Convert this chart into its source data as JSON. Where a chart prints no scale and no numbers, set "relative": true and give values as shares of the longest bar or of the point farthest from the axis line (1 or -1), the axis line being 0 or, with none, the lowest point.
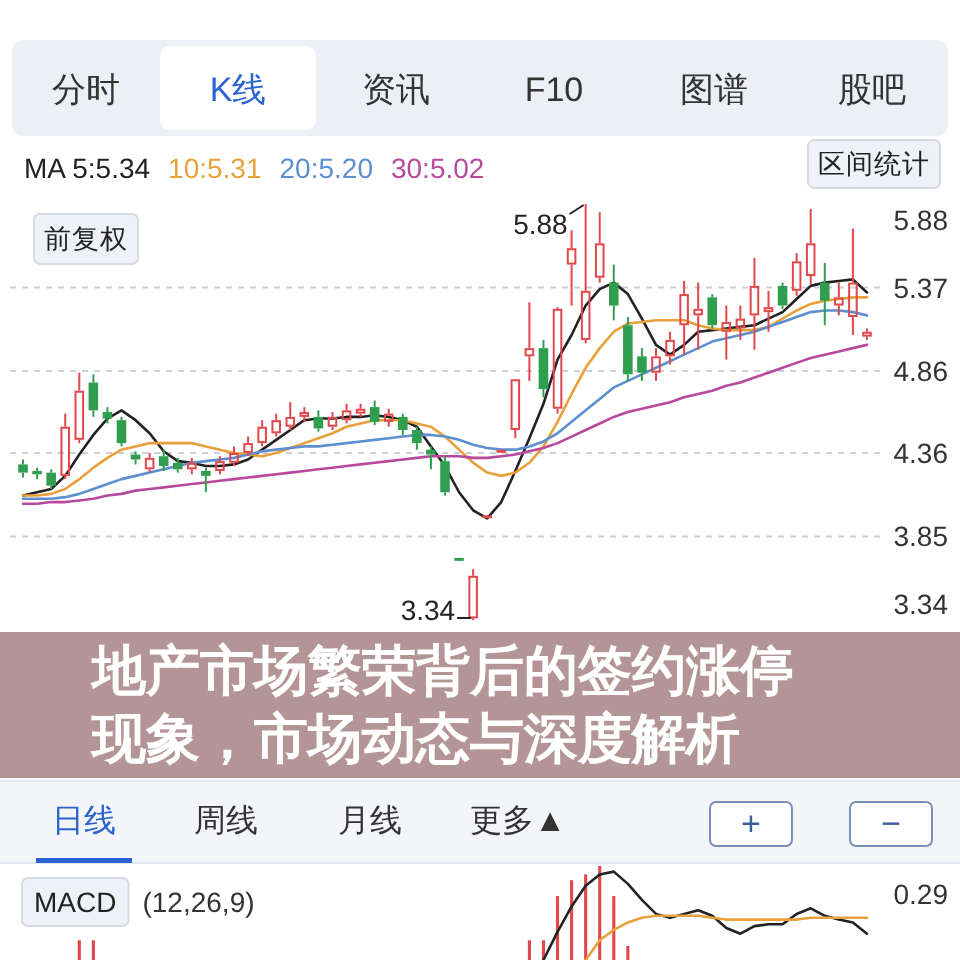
{
  "chart_data": [
    {
      "type": "candlestick",
      "title": "地产市场繁荣背后的签约涨停现象，市场动态与深度解析",
      "categories": [
        null,
        null,
        null,
        null,
        null,
        null,
        null,
        null,
        null,
        null,
        null,
        null,
        null,
        null,
        null,
        null,
        null,
        null,
        null,
        null,
        null,
        null,
        null,
        null,
        null,
        null,
        null,
        null,
        null,
        null,
        null,
        null,
        null,
        null,
        null,
        null,
        null,
        null,
        null,
        null,
        null,
        null,
        null,
        null,
        null,
        null,
        null,
        null,
        null,
        null,
        null,
        null,
        null,
        null,
        null,
        null,
        null,
        null,
        null,
        null,
        null
      ],
      "ohlc": [
        [
          4.29,
          4.32,
          4.21,
          4.24
        ],
        [
          4.25,
          4.27,
          4.2,
          4.23
        ],
        [
          4.24,
          4.26,
          4.14,
          4.16
        ],
        [
          4.22,
          4.6,
          4.2,
          4.52
        ],
        [
          4.44,
          4.85,
          4.42,
          4.74
        ],
        [
          4.79,
          4.84,
          4.58,
          4.62
        ],
        [
          4.61,
          4.64,
          4.54,
          4.57
        ],
        [
          4.56,
          4.58,
          4.4,
          4.42
        ],
        [
          4.35,
          4.37,
          4.29,
          4.32
        ],
        [
          4.26,
          4.36,
          4.24,
          4.33
        ],
        [
          4.34,
          4.38,
          4.25,
          4.28
        ],
        [
          4.3,
          4.33,
          4.24,
          4.26
        ],
        [
          4.26,
          4.33,
          4.23,
          4.3
        ],
        [
          4.25,
          4.27,
          4.12,
          4.22
        ],
        [
          4.25,
          4.34,
          4.23,
          4.31
        ],
        [
          4.3,
          4.4,
          4.28,
          4.36
        ],
        [
          4.36,
          4.46,
          4.34,
          4.42
        ],
        [
          4.42,
          4.56,
          4.4,
          4.52
        ],
        [
          4.48,
          4.6,
          4.46,
          4.56
        ],
        [
          4.52,
          4.67,
          4.5,
          4.58
        ],
        [
          4.58,
          4.64,
          4.55,
          4.61
        ],
        [
          4.58,
          4.62,
          4.49,
          4.51
        ],
        [
          4.52,
          4.61,
          4.5,
          4.58
        ],
        [
          4.56,
          4.66,
          4.54,
          4.62
        ],
        [
          4.6,
          4.66,
          4.58,
          4.63
        ],
        [
          4.64,
          4.68,
          4.53,
          4.55
        ],
        [
          4.55,
          4.63,
          4.52,
          4.6
        ],
        [
          4.58,
          4.6,
          4.47,
          4.5
        ],
        [
          4.5,
          4.52,
          4.38,
          4.42
        ],
        [
          4.38,
          4.4,
          4.26,
          4.35
        ],
        [
          4.31,
          4.34,
          4.1,
          4.12
        ],
        [
          3.71,
          3.71,
          3.71,
          3.71
        ],
        [
          3.35,
          3.65,
          3.34,
          3.61
        ],
        [
          3.97,
          3.97,
          3.97,
          3.97
        ],
        [
          4.37,
          4.37,
          4.37,
          4.37
        ],
        [
          4.5,
          4.81,
          4.45,
          4.81
        ],
        [
          4.95,
          5.28,
          4.8,
          5.0
        ],
        [
          5.0,
          5.05,
          4.7,
          4.75
        ],
        [
          4.63,
          5.25,
          4.6,
          5.24
        ],
        [
          5.51,
          5.72,
          5.26,
          5.61
        ],
        [
          5.05,
          5.88,
          5.03,
          5.35
        ],
        [
          5.43,
          5.83,
          5.4,
          5.64
        ],
        [
          5.4,
          5.51,
          5.17,
          5.26
        ],
        [
          5.14,
          5.19,
          4.8,
          4.84
        ],
        [
          4.95,
          5.0,
          4.8,
          4.85
        ],
        [
          4.85,
          5.0,
          4.8,
          4.95
        ],
        [
          4.95,
          5.1,
          4.9,
          5.05
        ],
        [
          5.14,
          5.41,
          4.96,
          5.33
        ],
        [
          5.2,
          5.4,
          4.99,
          5.24
        ],
        [
          5.31,
          5.33,
          5.12,
          5.14
        ],
        [
          5.1,
          5.26,
          4.93,
          5.16
        ],
        [
          5.12,
          5.26,
          5.05,
          5.18
        ],
        [
          5.2,
          5.55,
          4.99,
          5.38
        ],
        [
          5.22,
          5.35,
          5.1,
          5.25
        ],
        [
          5.38,
          5.4,
          5.24,
          5.26
        ],
        [
          5.35,
          5.58,
          5.32,
          5.53
        ],
        [
          5.44,
          5.85,
          5.39,
          5.64
        ],
        [
          5.4,
          5.52,
          5.14,
          5.29
        ],
        [
          5.26,
          5.4,
          5.2,
          5.31
        ],
        [
          5.19,
          5.73,
          5.08,
          5.4
        ],
        [
          5.07,
          5.12,
          5.05,
          5.1
        ]
      ],
      "colors": [
        "#2f9e4f",
        "#2f9e4f",
        "#2f9e4f",
        "#e2474b",
        "#e2474b",
        "#2f9e4f",
        "#2f9e4f",
        "#2f9e4f",
        "#2f9e4f",
        "#e2474b",
        "#2f9e4f",
        "#2f9e4f",
        "#e2474b",
        "#2f9e4f",
        "#e2474b",
        "#e2474b",
        "#e2474b",
        "#e2474b",
        "#e2474b",
        "#e2474b",
        "#e2474b",
        "#2f9e4f",
        "#e2474b",
        "#e2474b",
        "#e2474b",
        "#2f9e4f",
        "#e2474b",
        "#2f9e4f",
        "#2f9e4f",
        "#2f9e4f",
        "#2f9e4f",
        "#2f9e4f",
        "#e2474b",
        "#e2474b",
        "#e2474b",
        "#e2474b",
        "#e2474b",
        "#2f9e4f",
        "#e2474b",
        "#e2474b",
        "#e2474b",
        "#e2474b",
        "#2f9e4f",
        "#2f9e4f",
        "#2f9e4f",
        "#e2474b",
        "#e2474b",
        "#e2474b",
        "#e2474b",
        "#2f9e4f",
        "#e2474b",
        "#e2474b",
        "#e2474b",
        "#e2474b",
        "#2f9e4f",
        "#e2474b",
        "#e2474b",
        "#2f9e4f",
        "#e2474b",
        "#e2474b",
        "#e2474b"
      ],
      "series": [
        {
          "name": "MA 5:5.34",
          "type": "line",
          "color": "#222222",
          "values": [
            4.1,
            4.12,
            4.14,
            4.22,
            4.35,
            4.47,
            4.57,
            4.62,
            4.56,
            4.48,
            4.37,
            4.31,
            4.3,
            4.28,
            4.28,
            4.29,
            4.32,
            4.38,
            4.44,
            4.5,
            4.56,
            4.57,
            4.57,
            4.58,
            4.58,
            4.59,
            4.58,
            4.56,
            4.52,
            4.4,
            4.28,
            4.12,
            4.01,
            3.96,
            4.06,
            4.25,
            4.45,
            4.66,
            4.93,
            5.08,
            5.26,
            5.36,
            5.4,
            5.33,
            5.18,
            5.02,
            4.96,
            5.02,
            5.1,
            5.11,
            5.12,
            5.13,
            5.14,
            5.18,
            5.22,
            5.3,
            5.38,
            5.4,
            5.41,
            5.42,
            5.34
          ]
        },
        {
          "name": "10:5.31",
          "type": "line",
          "color": "#e8a13a",
          "values": [
            4.1,
            4.1,
            4.11,
            4.14,
            4.2,
            4.27,
            4.33,
            4.38,
            4.4,
            4.42,
            4.42,
            4.42,
            4.42,
            4.4,
            4.38,
            4.36,
            4.35,
            4.34,
            4.36,
            4.39,
            4.42,
            4.45,
            4.48,
            4.52,
            4.54,
            4.56,
            4.56,
            4.56,
            4.54,
            4.52,
            4.46,
            4.38,
            4.3,
            4.24,
            4.22,
            4.24,
            4.3,
            4.4,
            4.55,
            4.72,
            4.88,
            5.0,
            5.1,
            5.15,
            5.16,
            5.17,
            5.17,
            5.17,
            5.14,
            5.12,
            5.11,
            5.11,
            5.11,
            5.13,
            5.18,
            5.23,
            5.27,
            5.29,
            5.3,
            5.31,
            5.31
          ]
        },
        {
          "name": "20:5.20",
          "type": "line",
          "color": "#5b8fd0",
          "values": [
            4.08,
            4.08,
            4.08,
            4.09,
            4.11,
            4.14,
            4.17,
            4.2,
            4.22,
            4.24,
            4.26,
            4.28,
            4.3,
            4.31,
            4.32,
            4.33,
            4.35,
            4.37,
            4.38,
            4.39,
            4.4,
            4.4,
            4.41,
            4.42,
            4.43,
            4.44,
            4.45,
            4.46,
            4.47,
            4.47,
            4.46,
            4.44,
            4.41,
            4.39,
            4.38,
            4.38,
            4.4,
            4.43,
            4.48,
            4.55,
            4.62,
            4.69,
            4.76,
            4.8,
            4.84,
            4.88,
            4.92,
            4.96,
            5.0,
            5.04,
            5.06,
            5.08,
            5.1,
            5.13,
            5.16,
            5.19,
            5.22,
            5.23,
            5.23,
            5.22,
            5.2
          ]
        },
        {
          "name": "30:5.02",
          "type": "line",
          "color": "#b8489c",
          "values": [
            4.05,
            4.05,
            4.06,
            4.06,
            4.07,
            4.08,
            4.1,
            4.11,
            4.13,
            4.14,
            4.15,
            4.16,
            4.17,
            4.18,
            4.19,
            4.2,
            4.21,
            4.22,
            4.23,
            4.24,
            4.25,
            4.26,
            4.27,
            4.28,
            4.29,
            4.3,
            4.31,
            4.32,
            4.33,
            4.34,
            4.34,
            4.34,
            4.33,
            4.33,
            4.34,
            4.35,
            4.37,
            4.39,
            4.42,
            4.46,
            4.5,
            4.54,
            4.58,
            4.61,
            4.63,
            4.65,
            4.67,
            4.7,
            4.72,
            4.74,
            4.77,
            4.79,
            4.82,
            4.85,
            4.88,
            4.91,
            4.94,
            4.96,
            4.98,
            5.0,
            5.02
          ]
        }
      ],
      "ylim": [
        3.34,
        5.88
      ],
      "yticks": [
        3.34,
        3.85,
        4.36,
        4.86,
        5.37,
        5.88
      ],
      "grid": "y",
      "legend": "top left",
      "annotations": [
        "5.88",
        "3.34",
        "分时",
        "K线",
        "资讯",
        "F10",
        "图谱",
        "股吧",
        "区间统计",
        "前复权"
      ]
    },
    {
      "type": "bar",
      "title": "MACD",
      "subtitle": "(12,26,9)",
      "relative": true,
      "categories": [
        null,
        null,
        null,
        null,
        null,
        null,
        null,
        null,
        null,
        null,
        null,
        null,
        null,
        null,
        null,
        null,
        null,
        null,
        null,
        null,
        null,
        null,
        null,
        null,
        null,
        null,
        null,
        null,
        null,
        null,
        null,
        null,
        null,
        null,
        null,
        null,
        null,
        null,
        null,
        null,
        null,
        null,
        null,
        null,
        null,
        null,
        null,
        null,
        null,
        null,
        null,
        null,
        null,
        null,
        null,
        null,
        null,
        null,
        null,
        null,
        null
      ],
      "series": [
        {
          "type": "bar",
          "color": "#e2474b",
          "values": [
            null,
            null,
            null,
            null,
            0.21,
            0.21,
            null,
            null,
            null,
            null,
            null,
            null,
            null,
            null,
            null,
            null,
            null,
            null,
            null,
            null,
            null,
            null,
            null,
            null,
            null,
            null,
            null,
            null,
            null,
            null,
            null,
            null,
            null,
            null,
            null,
            null,
            0.21,
            0.21,
            0.68,
            0.85,
            0.91,
            1,
            0.68,
            0.15,
            null,
            null,
            null,
            null,
            null,
            null,
            null,
            null,
            null,
            null,
            null,
            null,
            null,
            null,
            null,
            null,
            null
          ]
        },
        {
          "type": "line",
          "color": "#222222",
          "values": [
            null,
            null,
            null,
            null,
            null,
            null,
            null,
            null,
            null,
            null,
            null,
            null,
            null,
            null,
            null,
            null,
            null,
            null,
            null,
            null,
            null,
            null,
            null,
            null,
            null,
            null,
            null,
            null,
            null,
            null,
            null,
            null,
            null,
            null,
            null,
            null,
            null,
            0,
            0.3,
            0.57,
            0.79,
            0.91,
            0.94,
            0.81,
            0.64,
            0.49,
            0.45,
            0.49,
            0.53,
            0.47,
            0.34,
            0.28,
            0.36,
            0.38,
            0.38,
            0.49,
            0.55,
            0.47,
            0.43,
            0.4,
            0.28
          ]
        },
        {
          "type": "line",
          "color": "#e8a13a",
          "values": [
            null,
            null,
            null,
            null,
            null,
            null,
            null,
            null,
            null,
            null,
            null,
            null,
            null,
            null,
            null,
            null,
            null,
            null,
            null,
            null,
            null,
            null,
            null,
            null,
            null,
            null,
            null,
            null,
            null,
            null,
            null,
            null,
            null,
            null,
            null,
            null,
            null,
            null,
            null,
            null,
            0,
            0.21,
            0.32,
            0.4,
            0.45,
            0.47,
            0.47,
            0.47,
            0.47,
            0.45,
            0.43,
            0.43,
            0.43,
            0.43,
            0.43,
            0.43,
            0.45,
            0.45,
            0.45,
            0.45,
            0.45
          ]
        }
      ],
      "annotations": [
        "日线",
        "周线",
        "月线",
        "更多▲",
        "+",
        "−",
        "0.29"
      ]
    }
  ]
}
